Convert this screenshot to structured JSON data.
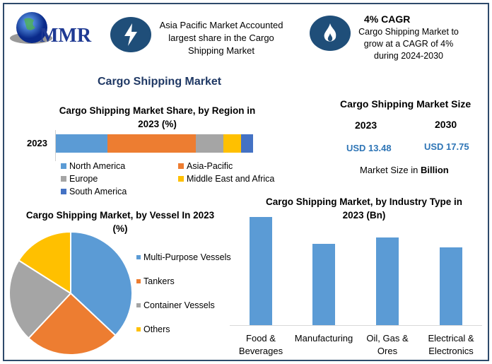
{
  "logo": {
    "text": "MMR"
  },
  "header": {
    "highlight1": "Asia Pacific Market Accounted largest share in the Cargo Shipping Market",
    "highlight2_title": "4% CAGR",
    "highlight2_text": "Cargo Shipping Market to grow at a CAGR of 4% during 2024-2030",
    "icon1": "lightning-bolt-icon",
    "icon2": "flame-icon"
  },
  "main_title": "Cargo Shipping Market",
  "market_size": {
    "title": "Cargo Shipping Market Size",
    "year1": "2023",
    "value1": "USD 13.48",
    "year2": "2030",
    "value2": "USD 17.75",
    "unit_prefix": "Market Size in ",
    "unit_bold": "Billion"
  },
  "chart_data": [
    {
      "type": "bar",
      "orientation": "horizontal-stacked",
      "title": "Cargo Shipping Market Share, by Region in 2023 (%)",
      "categories": [
        "2023"
      ],
      "series": [
        {
          "name": "North America",
          "values": [
            26
          ],
          "color": "#5b9bd5"
        },
        {
          "name": "Asia-Pacific",
          "values": [
            45
          ],
          "color": "#ed7d31"
        },
        {
          "name": "Europe",
          "values": [
            14
          ],
          "color": "#a5a5a5"
        },
        {
          "name": "Middle East and Africa",
          "values": [
            9
          ],
          "color": "#ffc000"
        },
        {
          "name": "South America",
          "values": [
            6
          ],
          "color": "#4472c4"
        }
      ],
      "legend": "bottom"
    },
    {
      "type": "pie",
      "title": "Cargo Shipping Market, by Vessel In 2023 (%)",
      "labels": [
        "Multi-Purpose Vessels",
        "Tankers",
        "Container Vessels",
        "Others"
      ],
      "values": [
        37,
        25,
        22,
        16
      ],
      "colors": [
        "#5b9bd5",
        "#ed7d31",
        "#a5a5a5",
        "#ffc000"
      ],
      "legend": "right"
    },
    {
      "type": "bar",
      "title": "Cargo Shipping Market, by Industry Type in 2023 (Bn)",
      "categories": [
        "Food & Beverages",
        "Manufacturing",
        "Oil, Gas & Ores",
        "Electrical & Electronics"
      ],
      "values": [
        100,
        75,
        81,
        72
      ],
      "color": "#5b9bd5",
      "grid": false
    }
  ]
}
